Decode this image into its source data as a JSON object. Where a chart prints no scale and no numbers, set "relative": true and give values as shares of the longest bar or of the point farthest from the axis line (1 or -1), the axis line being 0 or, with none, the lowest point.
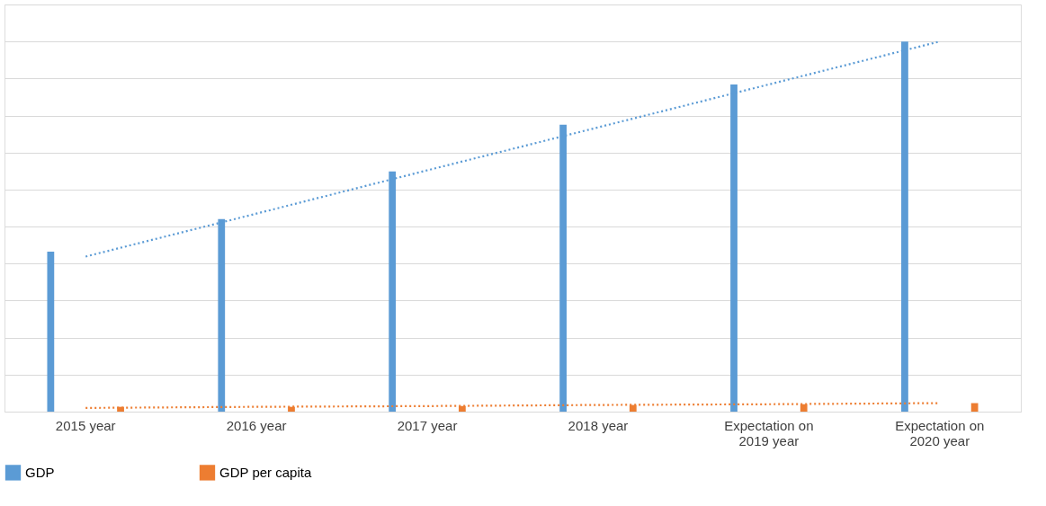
{
  "chart_data": {
    "type": "bar",
    "relative": true,
    "grid": "y",
    "legend": "bottom",
    "tick_labels": "x",
    "categories": [
      "2015 year",
      "2016 year",
      "2017 year",
      "2018 year",
      "Expectation on\n2019 year",
      "Expectation on\n2020 year"
    ],
    "series": [
      {
        "name": "GDP",
        "color": "#5b9bd5",
        "values": [
          0.432,
          0.52,
          0.649,
          0.775,
          0.884,
          1.0
        ]
      },
      {
        "name": "GDP per capita",
        "color": "#ed7d31",
        "values": [
          0.013,
          0.013,
          0.015,
          0.018,
          0.02,
          0.023
        ]
      },
      {
        "type": "line",
        "line_style": "dotted",
        "color": "#5b9bd5",
        "values": [
          0.419,
          0.535,
          0.652,
          0.768,
          0.884,
          1.0
        ]
      },
      {
        "type": "line",
        "line_style": "dotted",
        "color": "#ed7d31",
        "values": [
          0.01,
          0.013,
          0.015,
          0.018,
          0.02,
          0.023
        ]
      }
    ]
  }
}
